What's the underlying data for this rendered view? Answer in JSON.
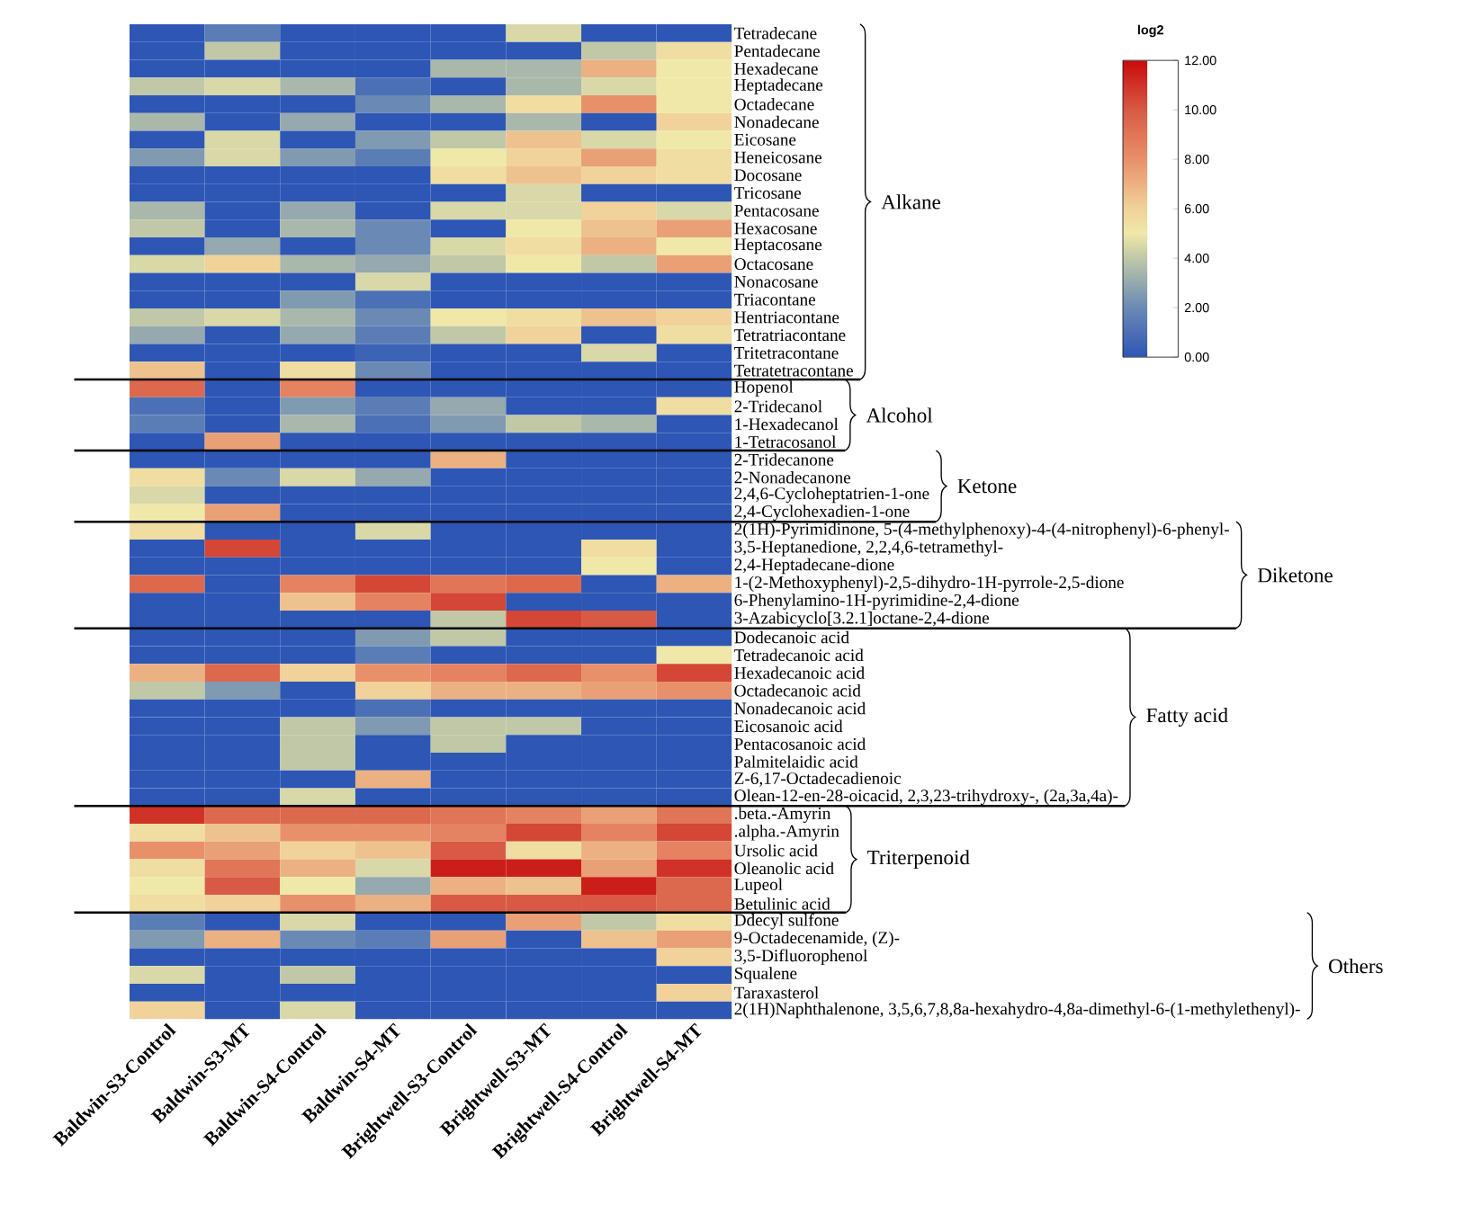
{
  "chart_data": {
    "type": "heatmap",
    "clabel": "log2",
    "clim": [
      0,
      12
    ],
    "cticks": [
      {
        "value": 0,
        "label": "0.00"
      },
      {
        "value": 2,
        "label": "2.00"
      },
      {
        "value": 4,
        "label": "4.00"
      },
      {
        "value": 6,
        "label": "6.00"
      },
      {
        "value": 8,
        "label": "8.00"
      },
      {
        "value": 10,
        "label": "10.00"
      },
      {
        "value": 12,
        "label": "12.00"
      }
    ],
    "categories": [
      "Baldwin-S3-Control",
      "Baldwin-S3-MT",
      "Baldwin-S4-Control",
      "Baldwin-S4-MT",
      "Brightwell-S3-Control",
      "Brightwell-S3-MT",
      "Brightwell-S4-Control",
      "Brightwell-S4-MT"
    ],
    "y_categories": [
      "Tetradecane",
      "Pentadecane",
      "Hexadecane",
      "Heptadecane",
      "Octadecane",
      "Nonadecane",
      "Eicosane",
      "Heneicosane",
      "Docosane",
      "Tricosane",
      "Pentacosane",
      "Hexacosane",
      "Heptacosane",
      "Octacosane",
      "Nonacosane",
      "Triacontane",
      "Hentriacontane",
      "Tetratriacontane",
      "Tritetracontane",
      "Tetratetracontane",
      "Hopenol",
      "2-Tridecanol",
      "1-Hexadecanol",
      "1-Tetracosanol",
      "2-Tridecanone",
      "2-Nonadecanone",
      "2,4,6-Cycloheptatrien-1-one",
      "2,4-Cyclohexadien-1-one",
      "2(1H)-Pyrimidinone, 5-(4-methylphenoxy)-4-(4-nitrophenyl)-6-phenyl-",
      "3,5-Heptanedione, 2,2,4,6-tetramethyl-",
      "2,4-Heptadecane-dione",
      "1-(2-Methoxyphenyl)-2,5-dihydro-1H-pyrrole-2,5-dione",
      "6-Phenylamino-1H-pyrimidine-2,4-dione",
      "3-Azabicyclo[3.2.1]octane-2,4-dione",
      "Dodecanoic acid",
      "Tetradecanoic acid",
      "Hexadecanoic acid",
      "Octadecanoic acid",
      "Nonadecanoic acid",
      "Eicosanoic acid",
      "Pentacosanoic acid",
      "Palmitelaidic acid",
      "Z-6,17-Octadecadienoic",
      "Olean-12-en-28-oicacid, 2,3,23-trihydroxy-, (2a,3a,4a)-",
      ".beta.-Amyrin",
      ".alpha.-Amyrin",
      "Ursolic acid",
      "Oleanolic acid",
      "Lupeol",
      "Betulinic acid",
      "Ddecyl sulfone",
      "9-Octadecenamide, (Z)-",
      "3,5-Difluorophenol",
      "Squalene",
      "Taraxasterol",
      "2(1H)Naphthalenone, 3,5,6,7,8,8a-hexahydro-4,8a-dimethyl-6-(1-methylethenyl)-"
    ],
    "annotations": [
      "Alkane",
      "Alcohol",
      "Ketone",
      "Diketone",
      "Fatty acid",
      "Triterpenoid",
      "Others"
    ],
    "cells": [
      [
        0,
        1.5,
        0,
        0,
        0,
        4.5,
        0,
        0
      ],
      [
        0,
        4,
        0,
        0,
        0,
        0,
        4,
        5.5
      ],
      [
        0,
        0,
        0,
        0,
        3.5,
        3.5,
        7,
        5
      ],
      [
        4,
        4.5,
        3.5,
        1,
        0,
        3.5,
        4.5,
        5
      ],
      [
        0,
        0,
        0,
        2,
        3.5,
        5.5,
        8,
        5
      ],
      [
        3.5,
        0,
        3,
        0,
        0,
        3.5,
        0,
        6
      ],
      [
        0,
        4.5,
        0,
        2.5,
        4,
        6.5,
        4.5,
        5
      ],
      [
        2.5,
        4.5,
        2.5,
        1.5,
        5,
        6,
        7.5,
        5.5
      ],
      [
        0,
        0,
        0,
        0,
        5.5,
        6.5,
        6,
        5.5
      ],
      [
        0,
        0,
        0,
        0,
        0,
        4.5,
        0,
        0
      ],
      [
        3.5,
        0,
        3,
        0,
        4.5,
        4.5,
        6,
        4.5
      ],
      [
        4,
        0,
        3.5,
        2,
        0,
        5,
        6.5,
        7.5
      ],
      [
        0,
        3,
        0,
        2,
        4.5,
        5.5,
        7,
        5
      ],
      [
        4.5,
        6,
        3.5,
        3,
        4,
        5,
        4,
        7.5
      ],
      [
        0,
        0,
        0,
        4.5,
        0,
        0,
        0,
        0
      ],
      [
        0,
        0,
        2.5,
        1,
        0,
        0,
        0,
        0
      ],
      [
        4,
        4.5,
        3.5,
        2,
        5,
        5.5,
        6.5,
        6
      ],
      [
        3,
        0,
        3,
        1.5,
        4,
        6,
        0,
        5.5
      ],
      [
        0,
        0,
        0,
        0.5,
        0,
        0,
        4.5,
        0
      ],
      [
        6.5,
        0,
        5.5,
        2,
        0,
        0,
        0,
        0
      ],
      [
        9.5,
        0,
        8.5,
        0,
        0,
        0,
        0,
        0
      ],
      [
        1,
        0,
        2.5,
        1.5,
        3,
        0,
        0,
        5.5
      ],
      [
        1.5,
        0,
        3.5,
        1,
        2.5,
        4,
        3.5,
        0
      ],
      [
        0,
        7.5,
        0,
        0,
        0,
        0,
        0,
        0
      ],
      [
        0,
        0,
        0,
        0,
        7,
        0,
        0,
        0
      ],
      [
        5.5,
        2,
        4.5,
        3,
        0,
        0,
        0,
        0
      ],
      [
        4.5,
        0,
        0,
        0,
        0,
        0,
        0,
        0
      ],
      [
        5,
        7.5,
        0,
        0,
        0,
        0,
        0,
        0
      ],
      [
        5.5,
        0,
        0,
        4.5,
        0,
        0,
        0,
        0
      ],
      [
        0,
        10.5,
        0,
        0,
        0,
        0,
        5.5,
        0
      ],
      [
        0,
        0,
        0,
        0,
        0,
        0,
        5,
        0
      ],
      [
        9.5,
        0,
        8.5,
        10.5,
        9,
        9.5,
        0,
        7
      ],
      [
        0,
        0,
        6.5,
        8.5,
        10.5,
        0,
        0,
        0
      ],
      [
        0,
        0,
        0,
        0,
        4,
        10.5,
        10,
        0
      ],
      [
        0,
        0,
        0,
        2.5,
        4,
        0,
        0,
        0
      ],
      [
        0,
        0,
        0,
        1.5,
        0,
        0,
        0,
        5
      ],
      [
        7,
        9.5,
        6,
        8,
        8.5,
        9.5,
        8,
        10.5
      ],
      [
        4,
        2.5,
        0,
        6,
        7,
        7,
        7.5,
        8
      ],
      [
        0,
        0,
        0,
        1,
        0,
        0,
        0,
        0
      ],
      [
        0,
        0,
        4,
        2.5,
        4,
        4,
        0,
        0
      ],
      [
        0,
        0,
        4,
        0,
        4,
        0,
        0,
        0
      ],
      [
        0,
        0,
        4,
        0,
        0,
        0,
        0,
        0
      ],
      [
        0,
        0,
        0,
        7,
        0,
        0,
        0,
        0
      ],
      [
        0,
        0,
        4.5,
        0,
        0,
        0,
        0,
        0
      ],
      [
        11,
        9.5,
        9.5,
        9.5,
        9,
        8.5,
        7.5,
        9
      ],
      [
        5.5,
        6.5,
        8,
        8,
        8.5,
        10.5,
        8.5,
        10.5
      ],
      [
        8,
        7.5,
        6,
        6.5,
        10,
        5.5,
        7,
        8.5
      ],
      [
        5.5,
        9,
        7,
        4.5,
        11.5,
        11.5,
        7.5,
        11
      ],
      [
        5,
        10,
        5,
        3,
        7,
        6.5,
        11.5,
        9.5
      ],
      [
        5.5,
        6,
        8,
        7,
        10,
        10,
        10,
        9.5
      ],
      [
        1.5,
        0,
        4.5,
        0,
        0,
        7.5,
        4,
        5.5
      ],
      [
        2.5,
        7,
        2,
        1.5,
        7.5,
        0,
        6.5,
        7.5
      ],
      [
        0,
        0,
        0,
        0,
        0,
        0,
        0,
        6
      ],
      [
        4.5,
        0,
        4,
        0,
        0,
        0,
        0,
        0
      ],
      [
        0,
        0,
        0,
        0,
        0,
        0,
        0,
        6
      ],
      [
        6,
        0,
        4.5,
        0,
        0,
        0,
        0,
        0
      ]
    ]
  }
}
